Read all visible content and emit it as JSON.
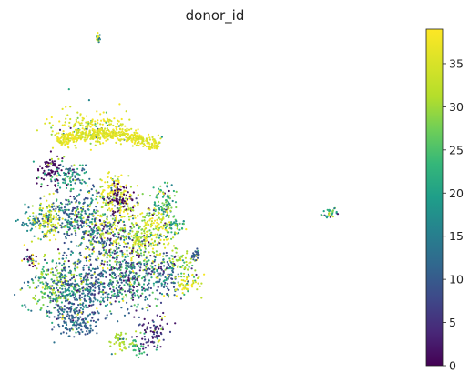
{
  "chart_data": {
    "type": "scatter",
    "title": "donor_id",
    "xlabel": "",
    "ylabel": "",
    "axes_visible": false,
    "grid": false,
    "colorbar": {
      "colormap": "viridis",
      "range": [
        0,
        39
      ],
      "ticks": [
        0,
        5,
        10,
        15,
        20,
        25,
        30,
        35
      ],
      "tick_labels": [
        "0",
        "5",
        "10",
        "15",
        "20",
        "25",
        "30",
        "35"
      ],
      "placement": "right"
    },
    "point_color_variable": "donor_id",
    "clusters": [
      {
        "x": 18.8,
        "y": 98.9,
        "spread": [
          0.6,
          0.9
        ],
        "donor_values": [
          15,
          25,
          33,
          38
        ]
      },
      {
        "x": 17.5,
        "y": 71.5,
        "spread": [
          9.5,
          4.6
        ],
        "donor_values": [
          36,
          38,
          34
        ]
      },
      {
        "x": 6.3,
        "y": 58.5,
        "spread": [
          4.0,
          4.2
        ],
        "donor_values": [
          0,
          1,
          2
        ]
      },
      {
        "x": 11.2,
        "y": 56.8,
        "spread": [
          4.5,
          3.4
        ],
        "donor_values": [
          12,
          20,
          22,
          9
        ]
      },
      {
        "x": 22.8,
        "y": 50.5,
        "spread": [
          4.4,
          6.8
        ],
        "donor_values": [
          37,
          38,
          36,
          30
        ]
      },
      {
        "x": 24.4,
        "y": 50.2,
        "spread": [
          2.9,
          4.6
        ],
        "donor_values": [
          0,
          1
        ]
      },
      {
        "x": 36.1,
        "y": 50.0,
        "spread": [
          2.7,
          6.2
        ],
        "donor_values": [
          16,
          22,
          28
        ]
      },
      {
        "x": 2.1,
        "y": 43.0,
        "spread": [
          3.3,
          4.2
        ],
        "donor_values": [
          13,
          17,
          20
        ]
      },
      {
        "x": 6.0,
        "y": 44.2,
        "spread": [
          3.4,
          5.8
        ],
        "donor_values": [
          33,
          36
        ]
      },
      {
        "x": 13.5,
        "y": 45.0,
        "spread": [
          6.6,
          8.0
        ],
        "donor_values": [
          8,
          10,
          12,
          20,
          25
        ]
      },
      {
        "x": 21.0,
        "y": 38.5,
        "spread": [
          5.8,
          7.2
        ],
        "donor_values": [
          3,
          9,
          12,
          18,
          31,
          37
        ]
      },
      {
        "x": 31.0,
        "y": 39.5,
        "spread": [
          7.0,
          9.0
        ],
        "donor_values": [
          28,
          32,
          36,
          38
        ]
      },
      {
        "x": 38.9,
        "y": 42.0,
        "spread": [
          2.9,
          3.0
        ],
        "donor_values": [
          18,
          22,
          26
        ]
      },
      {
        "x": 0.8,
        "y": 31.5,
        "spread": [
          1.7,
          2.0
        ],
        "donor_values": [
          0,
          1,
          38
        ]
      },
      {
        "x": 7.6,
        "y": 24.2,
        "spread": [
          6.7,
          7.6
        ],
        "donor_values": [
          28,
          31,
          22,
          12
        ]
      },
      {
        "x": 15.0,
        "y": 22.0,
        "spread": [
          7.6,
          8.5
        ],
        "donor_values": [
          6,
          9,
          11,
          14,
          18
        ]
      },
      {
        "x": 26.5,
        "y": 26.2,
        "spread": [
          7.3,
          9.3
        ],
        "donor_values": [
          10,
          12,
          22,
          26,
          3
        ]
      },
      {
        "x": 36.0,
        "y": 26.6,
        "spread": [
          4.2,
          5.7
        ],
        "donor_values": [
          7,
          10,
          13,
          20
        ]
      },
      {
        "x": 42.5,
        "y": 24.5,
        "spread": [
          3.4,
          3.4
        ],
        "donor_values": [
          38,
          36,
          32
        ]
      },
      {
        "x": 41.0,
        "y": 31.0,
        "spread": [
          3.5,
          2.6
        ],
        "donor_values": [
          30,
          32,
          24
        ]
      },
      {
        "x": 44.6,
        "y": 33.0,
        "spread": [
          0.8,
          1.4
        ],
        "donor_values": [
          9,
          12
        ]
      },
      {
        "x": 24.8,
        "y": 6.6,
        "spread": [
          3.0,
          3.4
        ],
        "donor_values": [
          30,
          32
        ]
      },
      {
        "x": 33.4,
        "y": 9.0,
        "spread": [
          3.4,
          4.5
        ],
        "donor_values": [
          2,
          4,
          7
        ]
      },
      {
        "x": 29.0,
        "y": 4.5,
        "spread": [
          2.0,
          2.3
        ],
        "donor_values": [
          22,
          24
        ]
      },
      {
        "x": 12.0,
        "y": 12.8,
        "spread": [
          6.0,
          4.0
        ],
        "donor_values": [
          9,
          11,
          13
        ]
      },
      {
        "x": 80.2,
        "y": 45.8,
        "spread": [
          1.7,
          1.7
        ],
        "donor_values": [
          22,
          20,
          28,
          33,
          1,
          38
        ]
      }
    ],
    "arc": {
      "center": [
        19.9,
        48.4
      ],
      "radius": 26.0,
      "angle_start_deg": 55,
      "angle_end_deg": 117,
      "donor_values": [
        36,
        38,
        34
      ]
    }
  }
}
